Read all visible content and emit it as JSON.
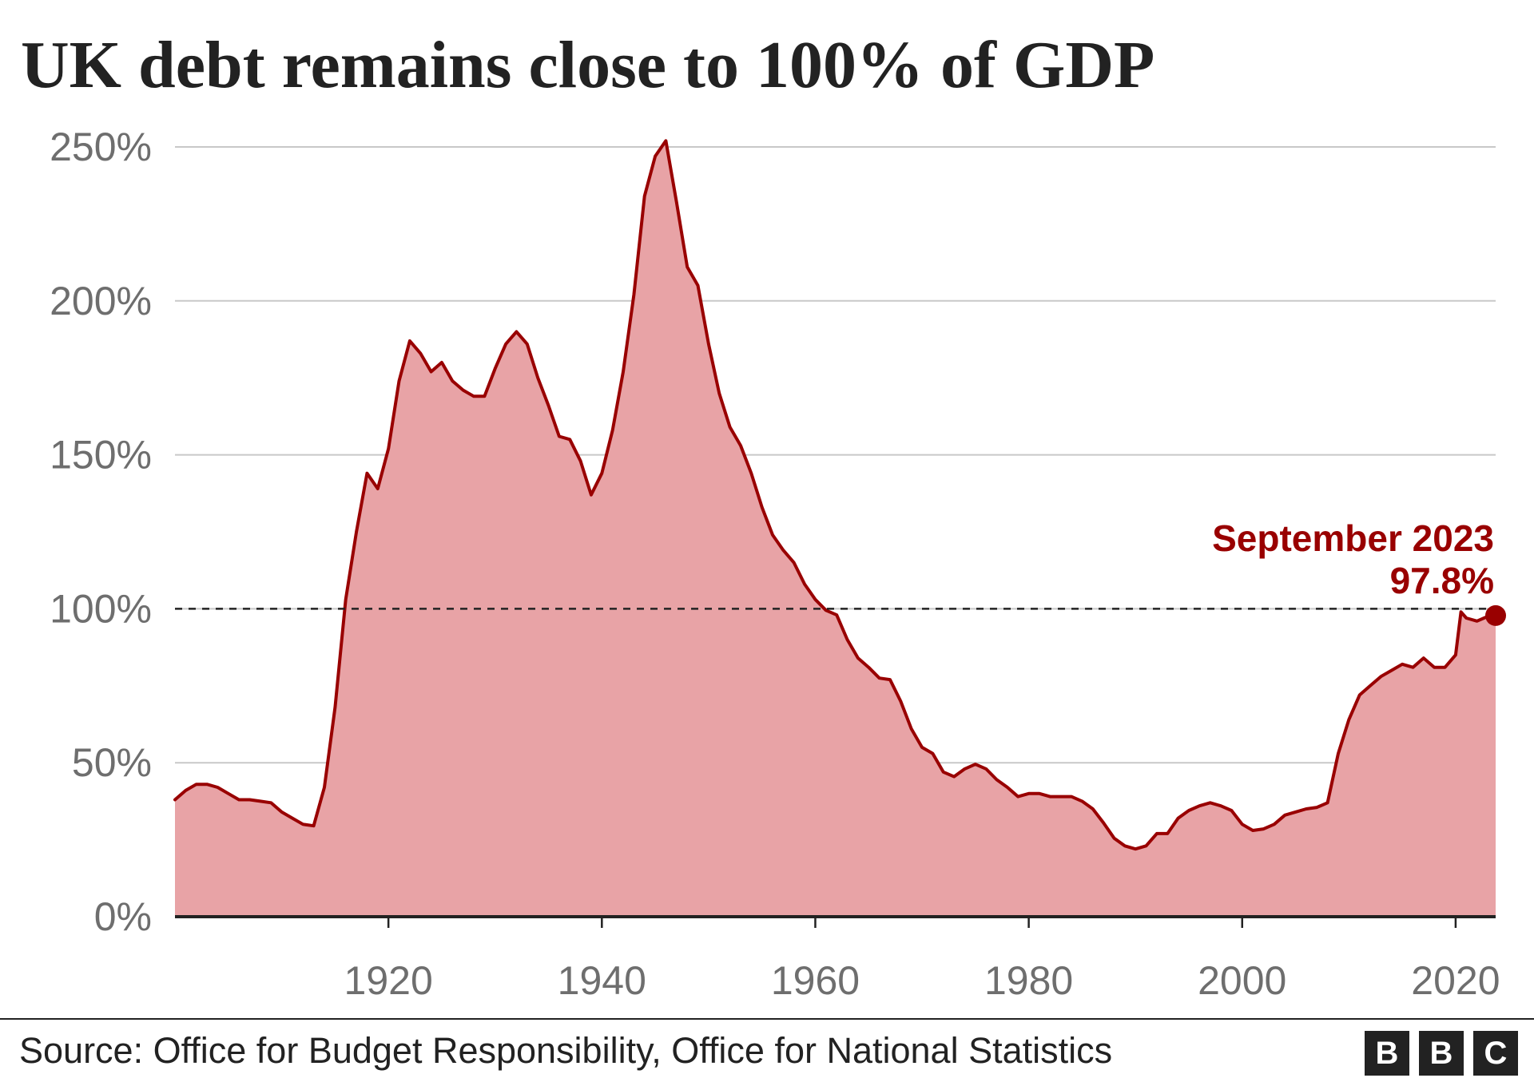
{
  "chart_data": {
    "type": "area",
    "title": "UK debt remains close to 100% of GDP",
    "y_ticks": [
      "250%",
      "200%",
      "150%",
      "100%",
      "50%",
      "0%"
    ],
    "y_tick_values": [
      250,
      200,
      150,
      100,
      50,
      0
    ],
    "x_ticks": [
      "1920",
      "1940",
      "1960",
      "1980",
      "2000",
      "2020"
    ],
    "x_tick_values": [
      1920,
      1940,
      1960,
      1980,
      2000,
      2020
    ],
    "xlim": [
      1900,
      2023.75
    ],
    "ylim": [
      0,
      250
    ],
    "grid": true,
    "reference_line": 100,
    "series": [
      {
        "color": "#990000",
        "fill": "#e8a3a6",
        "x": [
          1900,
          1901,
          1902,
          1903,
          1904,
          1905,
          1906,
          1907,
          1908,
          1909,
          1910,
          1911,
          1912,
          1913,
          1914,
          1915,
          1916,
          1917,
          1918,
          1919,
          1920,
          1921,
          1922,
          1923,
          1924,
          1925,
          1926,
          1927,
          1928,
          1929,
          1930,
          1931,
          1932,
          1933,
          1934,
          1935,
          1936,
          1937,
          1938,
          1939,
          1940,
          1941,
          1942,
          1943,
          1944,
          1945,
          1946,
          1947,
          1948,
          1949,
          1950,
          1951,
          1952,
          1953,
          1954,
          1955,
          1956,
          1957,
          1958,
          1959,
          1960,
          1961,
          1962,
          1963,
          1964,
          1965,
          1966,
          1967,
          1968,
          1969,
          1970,
          1971,
          1972,
          1973,
          1974,
          1975,
          1976,
          1977,
          1978,
          1979,
          1980,
          1981,
          1982,
          1983,
          1984,
          1985,
          1986,
          1987,
          1988,
          1989,
          1990,
          1991,
          1992,
          1993,
          1994,
          1995,
          1996,
          1997,
          1998,
          1999,
          2000,
          2001,
          2002,
          2003,
          2004,
          2005,
          2006,
          2007,
          2008,
          2009,
          2010,
          2011,
          2012,
          2013,
          2014,
          2015,
          2016,
          2017,
          2018,
          2019,
          2020,
          2020.5,
          2021,
          2022,
          2023,
          2023.75
        ],
        "y": [
          38,
          41,
          43,
          43,
          42,
          40,
          38,
          38,
          37.5,
          37,
          34,
          32,
          30,
          29.5,
          42,
          68,
          103,
          125,
          144,
          139,
          152,
          174,
          187,
          183,
          177,
          180,
          174,
          171,
          169,
          169,
          178,
          186,
          190,
          186,
          175,
          166,
          156,
          155,
          148,
          137,
          144,
          158,
          177,
          202,
          234,
          247,
          252,
          232,
          211,
          205,
          186,
          170,
          159,
          153,
          144,
          133,
          124,
          119,
          115,
          108,
          103,
          99.5,
          98,
          90,
          84,
          81,
          77.5,
          77,
          70,
          61,
          55,
          53,
          47,
          45.5,
          48,
          49.5,
          48,
          44.5,
          42,
          39,
          40,
          40,
          39,
          39,
          39,
          37.5,
          35,
          30.5,
          25.5,
          23,
          22,
          23,
          27,
          27,
          32,
          34.5,
          36,
          37,
          36,
          34.5,
          30,
          28,
          28.5,
          30,
          33,
          34,
          35,
          35.5,
          37,
          53,
          64,
          72,
          75,
          78,
          80,
          82,
          81,
          84,
          81,
          81,
          85,
          99,
          97,
          96,
          97.5,
          97.8
        ]
      }
    ],
    "annotation": {
      "label": "September 2023",
      "value_label": "97.8%",
      "x": 2023.75,
      "y": 97.8
    }
  },
  "footer": {
    "source": "Source: Office for Budget Responsibility, Office for National Statistics",
    "logo_letters": [
      "B",
      "B",
      "C"
    ]
  }
}
